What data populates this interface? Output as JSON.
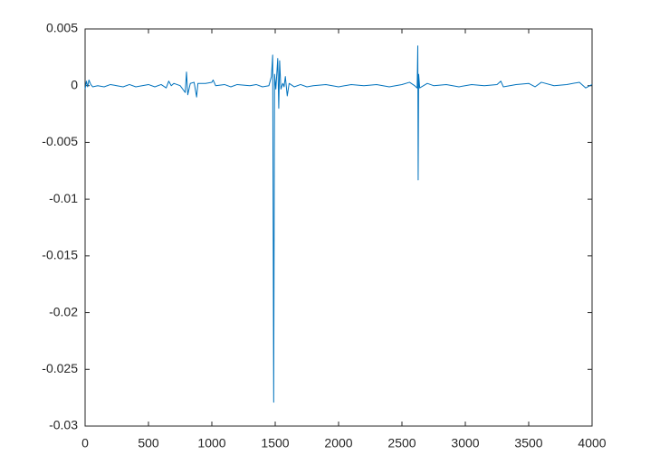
{
  "chart_data": {
    "type": "line",
    "color": "#0072bd",
    "x": [
      0,
      10,
      20,
      30,
      45,
      60,
      100,
      150,
      200,
      250,
      300,
      350,
      400,
      450,
      500,
      550,
      600,
      640,
      660,
      680,
      700,
      750,
      790,
      800,
      810,
      830,
      860,
      880,
      890,
      950,
      1000,
      1010,
      1030,
      1100,
      1150,
      1200,
      1300,
      1350,
      1400,
      1450,
      1470,
      1480,
      1488,
      1495,
      1505,
      1520,
      1528,
      1535,
      1545,
      1560,
      1570,
      1580,
      1595,
      1610,
      1650,
      1700,
      1750,
      1800,
      1900,
      2000,
      2100,
      2200,
      2300,
      2400,
      2500,
      2560,
      2600,
      2620,
      2625,
      2628,
      2632,
      2640,
      2700,
      2750,
      2850,
      2950,
      3050,
      3150,
      3250,
      3280,
      3300,
      3400,
      3500,
      3550,
      3600,
      3700,
      3800,
      3900,
      3950,
      4000
    ],
    "values": [
      -0.0003,
      0.0004,
      -0.0001,
      0.0005,
      0.0001,
      -0.0001,
      0,
      -0.0001,
      0.0001,
      0,
      -0.0001,
      0.0001,
      -0.0001,
      0,
      0.0001,
      -0.0001,
      0.0001,
      -0.0002,
      0.0004,
      0,
      0.0002,
      0,
      -0.0006,
      0.0012,
      -0.0008,
      0.0002,
      0.0003,
      -0.001,
      0.0002,
      0.0002,
      0.0003,
      0.0005,
      0,
      0.0001,
      -0.0001,
      0.0001,
      0,
      0.0001,
      -0.0001,
      0,
      0.0008,
      0.0027,
      -0.0279,
      0.001,
      -0.0003,
      0.0024,
      -0.002,
      0.0022,
      -0.0003,
      0.0002,
      -0.0001,
      0.0008,
      -0.0009,
      0.0002,
      -0.0001,
      0.0001,
      -0.0001,
      0,
      0.0001,
      -0.0001,
      0.0001,
      0,
      0.0001,
      -0.0001,
      0.0001,
      0.0003,
      0,
      -0.0002,
      0.0035,
      -0.0083,
      0.001,
      -0.0002,
      0.0002,
      0,
      0.0001,
      -0.0001,
      0.0001,
      0,
      0.0001,
      0.0004,
      -0.0001,
      0.0001,
      0.0002,
      -0.0001,
      0.0003,
      0,
      0.0001,
      0.0003,
      -0.0002,
      0.0001
    ],
    "xlim": [
      0,
      4000
    ],
    "xticks": [
      0,
      500,
      1000,
      1500,
      2000,
      2500,
      3000,
      3500,
      4000
    ],
    "ylim": [
      -0.03,
      0.005
    ],
    "yticks": [
      -0.03,
      -0.025,
      -0.02,
      -0.015,
      -0.01,
      -0.005,
      0,
      0.005
    ]
  }
}
